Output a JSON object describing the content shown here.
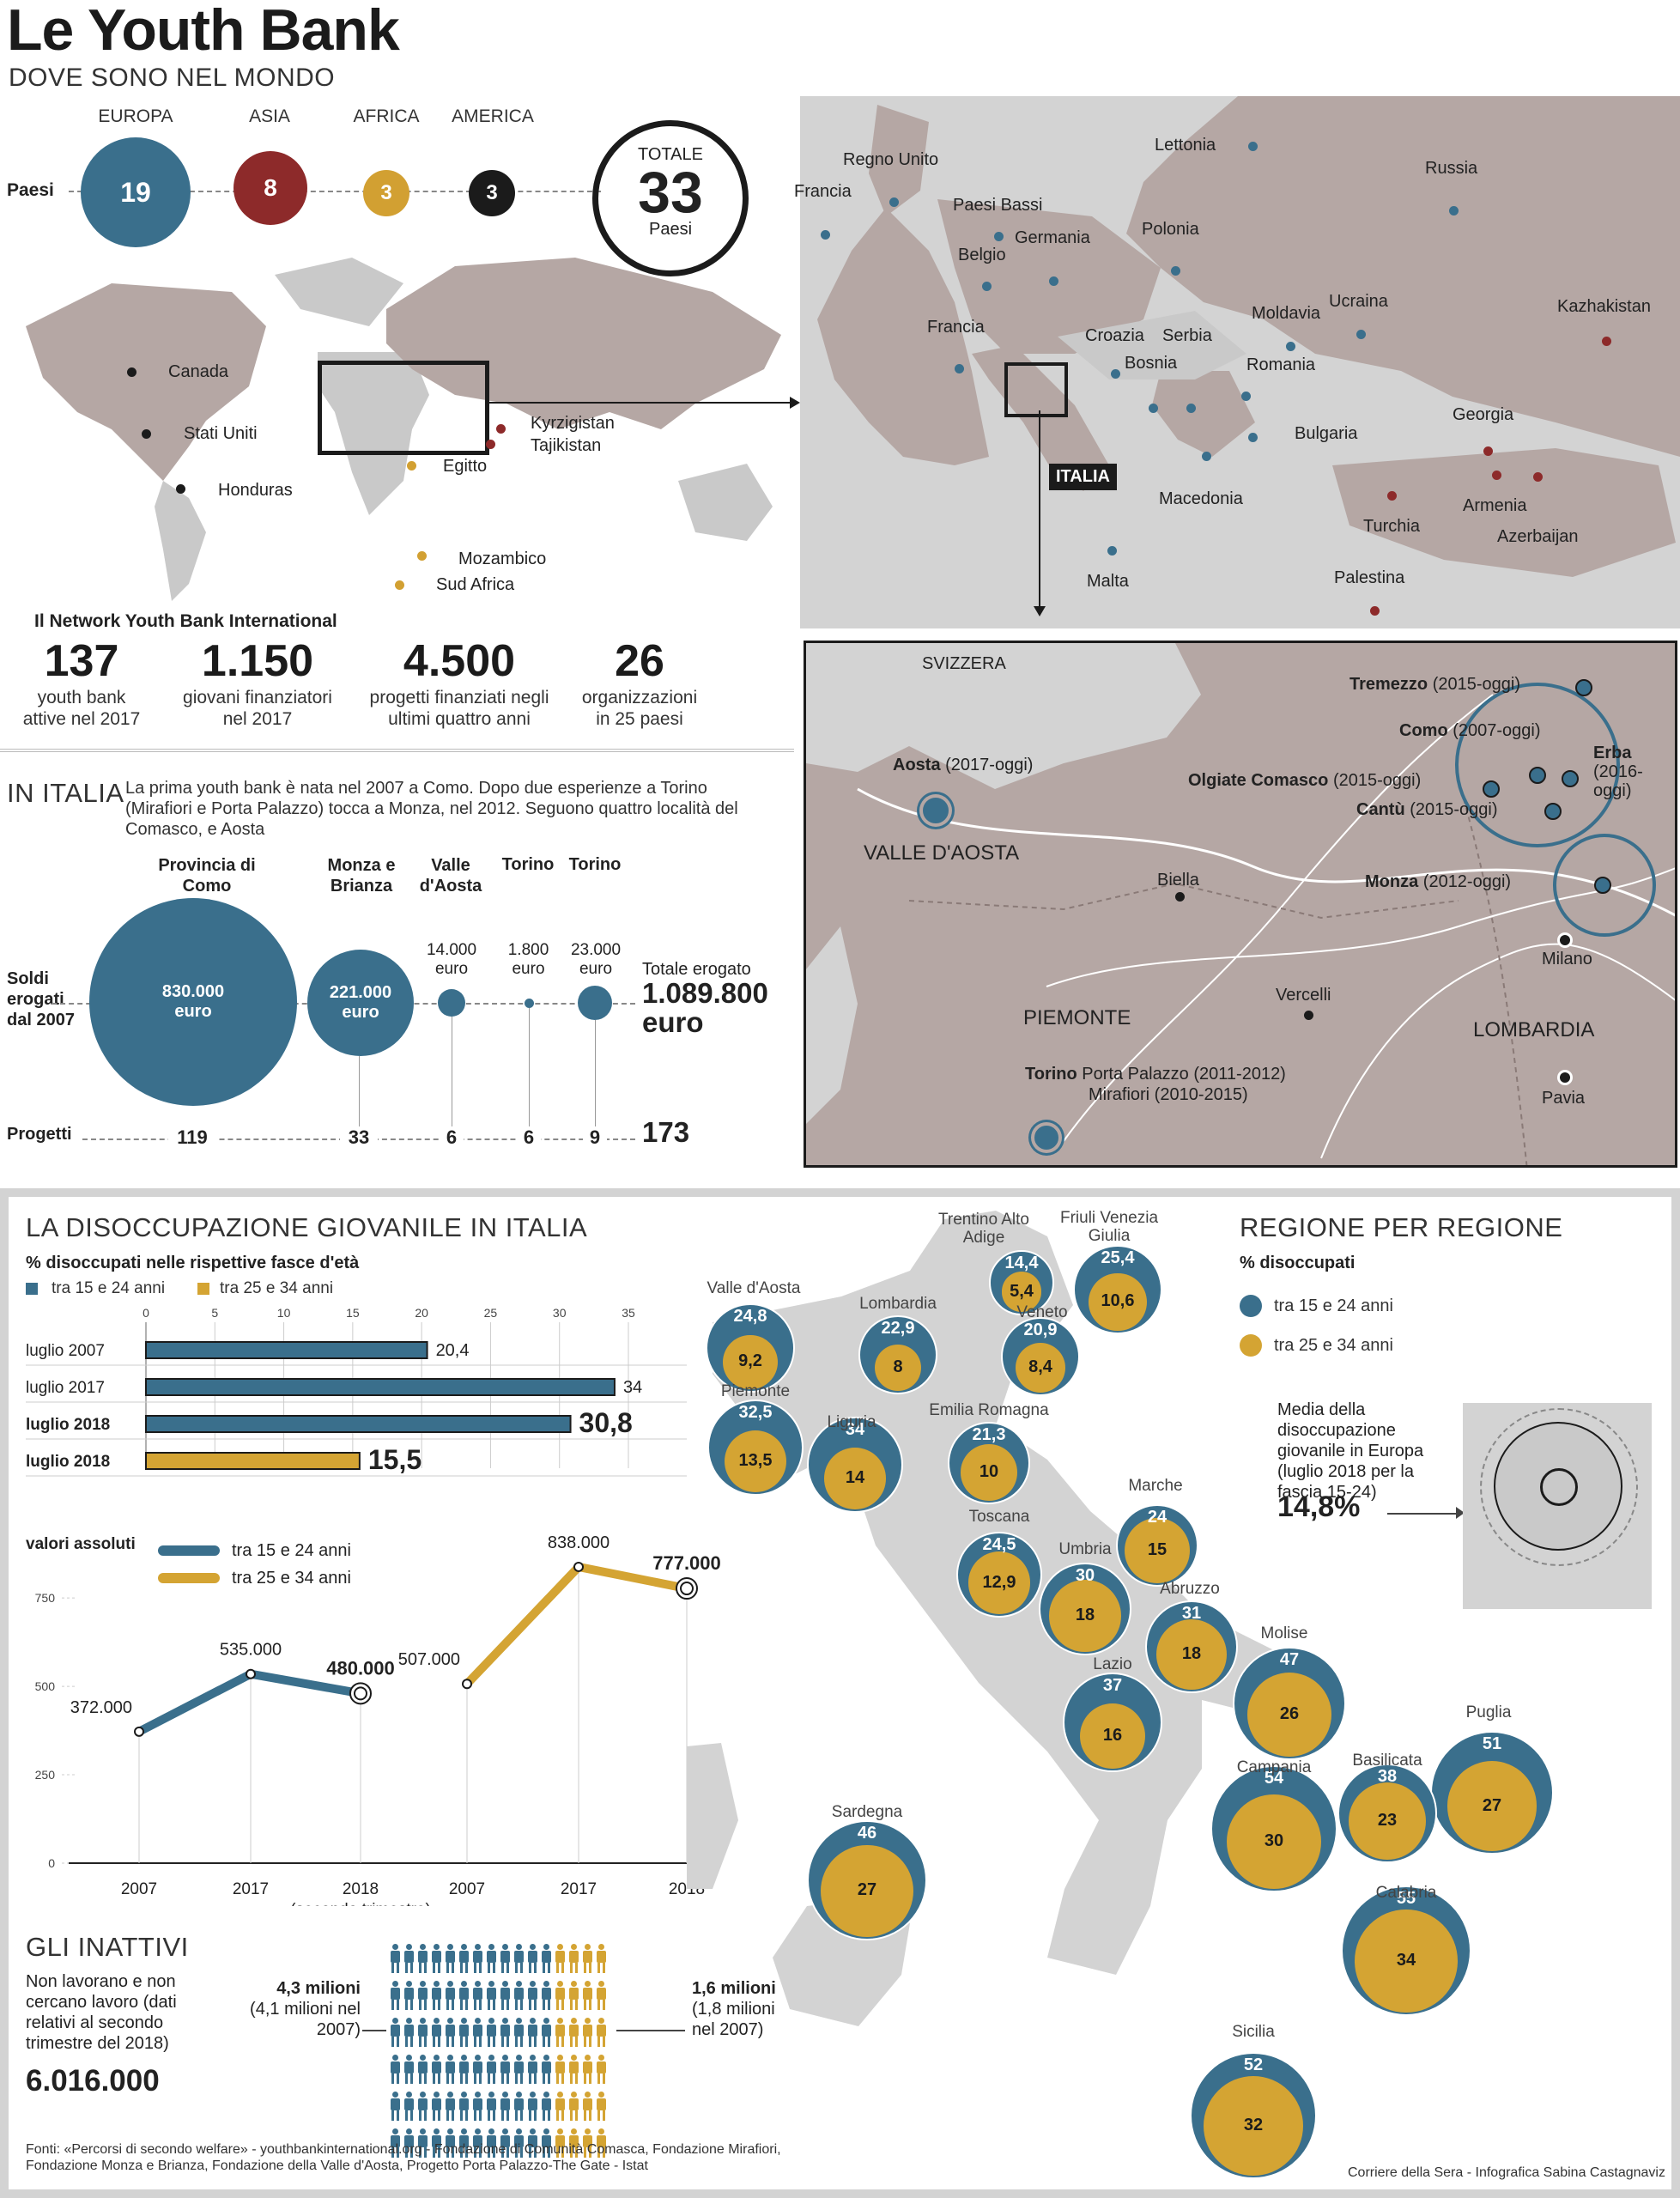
{
  "header": {
    "title": "Le Youth Bank",
    "subtitle": "DOVE SONO NEL MONDO"
  },
  "paesi": {
    "row_label": "Paesi",
    "continents": [
      {
        "name": "EUROPA",
        "value": "19",
        "color": "#3a6f8c"
      },
      {
        "name": "ASIA",
        "value": "8",
        "color": "#8d2a2a"
      },
      {
        "name": "AFRICA",
        "value": "3",
        "color": "#d2a032"
      },
      {
        "name": "AMERICA",
        "value": "3",
        "color": "#1b1b1b"
      }
    ],
    "total": {
      "label": "TOTALE",
      "value": "33",
      "unit": "Paesi"
    }
  },
  "world_map_labels": [
    "Canada",
    "Stati Uniti",
    "Honduras",
    "Kyrzigistan",
    "Tajikistan",
    "Egitto",
    "Mozambico",
    "Sud Africa"
  ],
  "europe_map_labels": [
    "Lettonia",
    "Russia",
    "Regno Unito",
    "Francia",
    "Paesi Bassi",
    "Belgio",
    "Germania",
    "Polonia",
    "Francia",
    "Moldavia",
    "Ucraina",
    "Kazhakistan",
    "Croazia",
    "Serbia",
    "Bosnia",
    "Romania",
    "Bulgaria",
    "Georgia",
    "ITALIA",
    "Armenia",
    "Azerbaijan",
    "Macedonia",
    "Turchia",
    "Malta",
    "Palestina"
  ],
  "network": {
    "title": "Il Network Youth Bank International",
    "stats": [
      {
        "value": "137",
        "label": "youth bank attive nel 2017"
      },
      {
        "value": "1.150",
        "label": "giovani finanziatori nel 2017"
      },
      {
        "value": "4.500",
        "label": "progetti finanziati negli ultimi quattro anni"
      },
      {
        "value": "26",
        "label": "organizzazioni in 25 paesi"
      }
    ]
  },
  "italia": {
    "title": "IN ITALIA",
    "intro": "La prima youth bank è nata nel 2007 a Como. Dopo due esperienze a Torino (Mirafiori e Porta Palazzo) tocca a Monza, nel 2012. Seguono quattro località del Comasco, e Aosta",
    "soldi_label": "Soldi erogati dal 2007",
    "progetti_label": "Progetti",
    "totale_label": "Totale erogato",
    "totale_value": "1.089.800 euro",
    "progetti_total": "173",
    "banks": [
      {
        "name": "Provincia di Como",
        "amount": "830.000 euro",
        "projects": "119"
      },
      {
        "name": "Monza e Brianza",
        "amount": "221.000 euro",
        "projects": "33"
      },
      {
        "name": "Valle d'Aosta",
        "amount": "14.000 euro",
        "projects": "6"
      },
      {
        "name": "Torino",
        "amount": "1.800 euro",
        "projects": "6"
      },
      {
        "name": "Torino",
        "amount": "23.000 euro",
        "projects": "9"
      }
    ]
  },
  "north_map": {
    "places": [
      {
        "name": "SVIZZERA",
        "note": ""
      },
      {
        "name": "Tremezzo",
        "note": "(2015-oggi)"
      },
      {
        "name": "Como",
        "note": "(2007-oggi)"
      },
      {
        "name": "Erba",
        "note": "(2016-oggi)"
      },
      {
        "name": "Olgiate Comasco",
        "note": "(2015-oggi)"
      },
      {
        "name": "Cantù",
        "note": "(2015-oggi)"
      },
      {
        "name": "Aosta",
        "note": "(2017-oggi)"
      },
      {
        "name": "VALLE D'AOSTA",
        "note": ""
      },
      {
        "name": "Biella",
        "note": ""
      },
      {
        "name": "Monza",
        "note": "(2012-oggi)"
      },
      {
        "name": "Milano",
        "note": ""
      },
      {
        "name": "Vercelli",
        "note": ""
      },
      {
        "name": "PIEMONTE",
        "note": ""
      },
      {
        "name": "LOMBARDIA",
        "note": ""
      },
      {
        "name": "Pavia",
        "note": ""
      }
    ],
    "torino_name": "Torino",
    "torino_note1": "Porta Palazzo (2011-2012)",
    "torino_note2": "Mirafiori (2010-2015)"
  },
  "disoccupazione": {
    "title": "LA DISOCCUPAZIONE GIOVANILE IN ITALIA",
    "subtitle": "% disoccupati nelle rispettive fasce d'età",
    "legend_15_24": "tra 15 e 24 anni",
    "legend_25_34": "tra 25 e 34 anni",
    "color_15_24": "#3a6f8c",
    "color_25_34": "#d4a433"
  },
  "chart_data": [
    {
      "type": "bar",
      "title": "% disoccupati nelle rispettive fasce d'età",
      "categories": [
        "luglio 2007",
        "luglio 2017",
        "luglio 2018",
        "luglio 2018"
      ],
      "values": [
        20.4,
        34,
        30.8,
        15.5
      ],
      "value_labels": [
        "20,4",
        "34",
        "30,8",
        "15,5"
      ],
      "series_of_bar": [
        "tra 15 e 24 anni",
        "tra 15 e 24 anni",
        "tra 15 e 24 anni",
        "tra 25 e 34 anni"
      ],
      "xlim": [
        0,
        35
      ],
      "ticks": [
        "0",
        "5",
        "10",
        "15",
        "20",
        "25",
        "30",
        "35"
      ]
    },
    {
      "type": "line",
      "title": "valori assoluti",
      "series": [
        {
          "name": "tra 15 e 24 anni",
          "x": [
            "2007",
            "2017",
            "2018"
          ],
          "values": [
            372000,
            535000,
            480000
          ],
          "labels": [
            "372.000",
            "535.000",
            "480.000"
          ]
        },
        {
          "name": "tra 25 e 34 anni",
          "x": [
            "2007",
            "2017",
            "2018"
          ],
          "values": [
            507000,
            838000,
            777000
          ],
          "labels": [
            "507.000",
            "838.000",
            "777.000"
          ]
        }
      ],
      "ylim": [
        0,
        850
      ],
      "yticks": [
        "0",
        "250",
        "500",
        "750"
      ],
      "x_note": "(secondo trimestre)"
    }
  ],
  "inattivi": {
    "title": "GLI INATTIVI",
    "desc": "Non lavorano e non cercano lavoro (dati relativi al secondo trimestre del 2018)",
    "total": "6.016.000",
    "left_value": "4,3 milioni",
    "left_note": "(4,1 milioni nel 2007)",
    "right_value": "1,6 milioni",
    "right_note": "(1,8 milioni nel 2007)"
  },
  "regioni": {
    "title": "REGIONE PER REGIONE",
    "subtitle": "% disoccupati",
    "legend_15_24": "tra 15 e 24 anni",
    "legend_25_34": "tra 25 e 34 anni",
    "europe_text": "Media della disoccupazione giovanile in Europa (luglio 2018 per la fascia 15-24)",
    "europe_value": "14,8%",
    "list": [
      {
        "name": "Valle d'Aosta",
        "a": "24,8",
        "b": "9,2"
      },
      {
        "name": "Lombardia",
        "a": "22,9",
        "b": "8"
      },
      {
        "name": "Trentino Alto Adige",
        "a": "14,4",
        "b": "5,4"
      },
      {
        "name": "Friuli Venezia Giulia",
        "a": "25,4",
        "b": "10,6"
      },
      {
        "name": "Veneto",
        "a": "20,9",
        "b": "8,4"
      },
      {
        "name": "Piemonte",
        "a": "32,5",
        "b": "13,5"
      },
      {
        "name": "Liguria",
        "a": "34",
        "b": "14"
      },
      {
        "name": "Emilia Romagna",
        "a": "21,3",
        "b": "10"
      },
      {
        "name": "Marche",
        "a": "24",
        "b": "15"
      },
      {
        "name": "Toscana",
        "a": "24,5",
        "b": "12,9"
      },
      {
        "name": "Umbria",
        "a": "30",
        "b": "18"
      },
      {
        "name": "Abruzzo",
        "a": "31",
        "b": "18"
      },
      {
        "name": "Lazio",
        "a": "37",
        "b": "16"
      },
      {
        "name": "Molise",
        "a": "47",
        "b": "26"
      },
      {
        "name": "Puglia",
        "a": "51",
        "b": "27"
      },
      {
        "name": "Basilicata",
        "a": "38",
        "b": "23"
      },
      {
        "name": "Campania",
        "a": "54",
        "b": "30"
      },
      {
        "name": "Sardegna",
        "a": "46",
        "b": "27"
      },
      {
        "name": "Calabria",
        "a": "55",
        "b": "34"
      },
      {
        "name": "Sicilia",
        "a": "52",
        "b": "32"
      }
    ]
  },
  "footer": {
    "sources": "Fonti: «Percorsi di secondo welfare» - youthbankinternational.org - Fondazione di Comunità Comasca, Fondazione Mirafiori, Fondazione Monza e Brianza, Fondazione della Valle d'Aosta, Progetto Porta Palazzo-The Gate - Istat",
    "credit": "Corriere della Sera - Infografica Sabina Castagnaviz"
  }
}
